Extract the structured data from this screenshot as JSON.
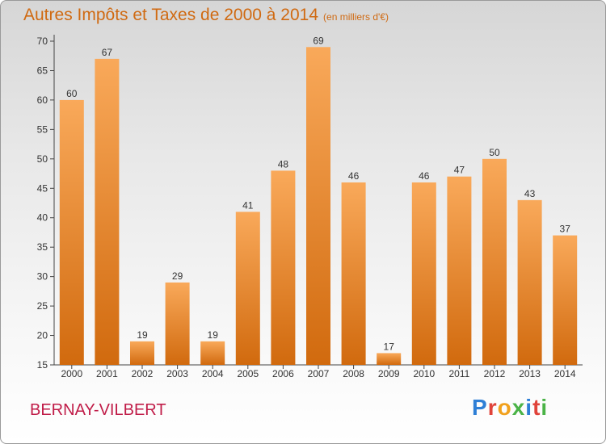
{
  "header": {
    "title": "Autres Impôts et Taxes de 2000 à 2014",
    "unit": "(en milliers d'€)"
  },
  "footer": {
    "commune": "BERNAY-VILBERT",
    "logo_text": "Proxiti"
  },
  "colors": {
    "title": "#d06a12",
    "bar_top": "#f9a95a",
    "bar_bottom": "#d16a0e",
    "commune": "#c01c48",
    "logo_letters": [
      "#2e7fd6",
      "#e0433a",
      "#f1a11d",
      "#4bb347",
      "#2e7fd6",
      "#e0433a",
      "#4bb347"
    ]
  },
  "chart_data": {
    "type": "bar",
    "title": "Autres Impôts et Taxes de 2000 à 2014",
    "subtitle": "(en milliers d'€)",
    "categories": [
      "2000",
      "2001",
      "2002",
      "2003",
      "2004",
      "2005",
      "2006",
      "2007",
      "2008",
      "2009",
      "2010",
      "2011",
      "2012",
      "2013",
      "2014"
    ],
    "values": [
      60,
      67,
      19,
      29,
      19,
      41,
      48,
      69,
      46,
      17,
      46,
      47,
      50,
      43,
      37
    ],
    "ylim": [
      15,
      70
    ],
    "yticks": [
      15,
      20,
      25,
      30,
      35,
      40,
      45,
      50,
      55,
      60,
      65,
      70
    ],
    "grid": false,
    "xlabel": "",
    "ylabel": ""
  }
}
